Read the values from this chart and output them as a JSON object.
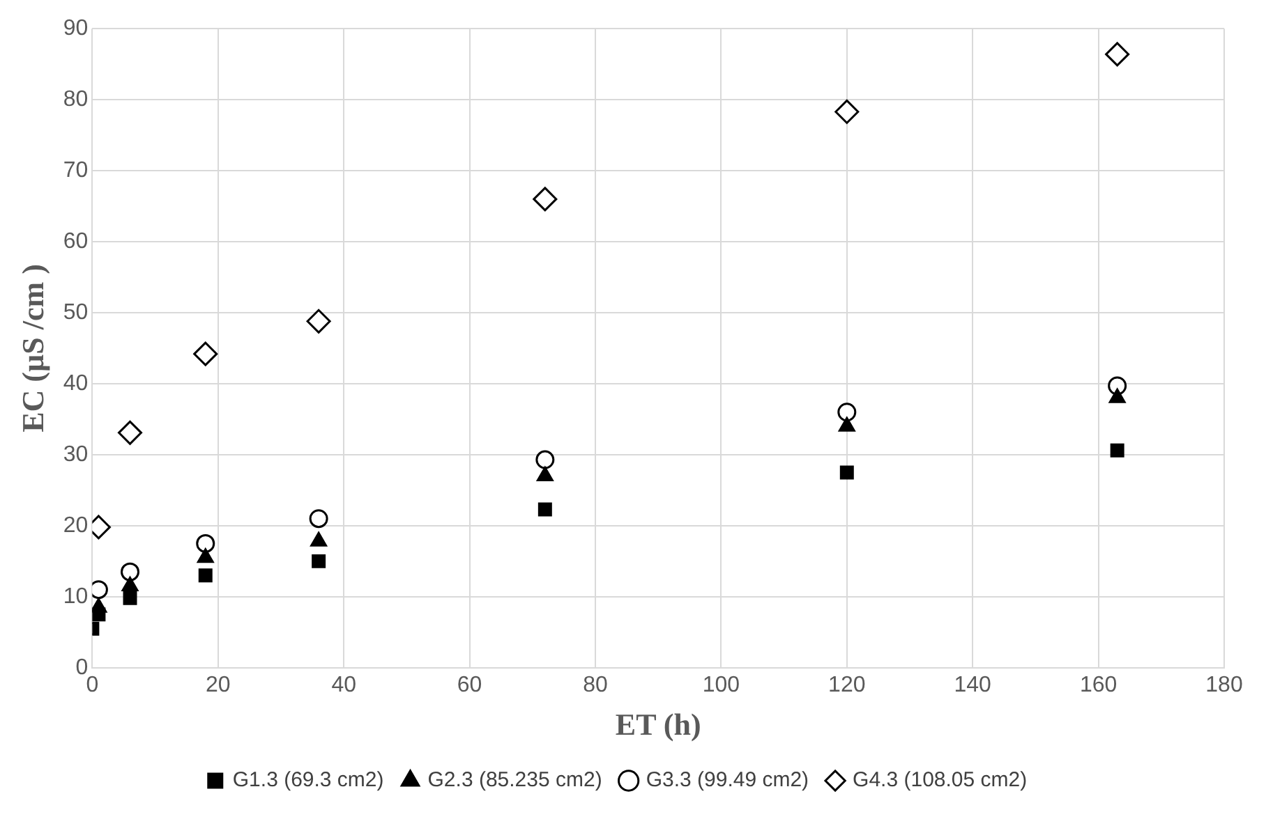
{
  "chart_data": {
    "type": "scatter",
    "xlabel": "ET (h)",
    "ylabel": "EC (µS /cm )",
    "xlim": [
      0,
      180
    ],
    "xticks": [
      0,
      20,
      40,
      60,
      80,
      100,
      120,
      140,
      160,
      180
    ],
    "ylim": [
      0,
      90
    ],
    "yticks": [
      0,
      10,
      20,
      30,
      40,
      50,
      60,
      70,
      80,
      90
    ],
    "grid": true,
    "legend": "bottom",
    "series": [
      {
        "name": "G1.3 (69.3 cm2)",
        "color": "#000000",
        "marker": "square",
        "x": [
          0,
          1,
          6,
          18,
          36,
          72,
          120,
          163
        ],
        "values": [
          5.5,
          7.5,
          9.8,
          13,
          15,
          22.3,
          27.5,
          30.6
        ]
      },
      {
        "name": "G2.3 (85.235 cm2)",
        "color": "#000000",
        "marker": "triangle",
        "x": [
          1,
          6,
          18,
          36,
          72,
          120,
          163
        ],
        "values": [
          8.5,
          11.5,
          15.5,
          17.8,
          27,
          34,
          38
        ]
      },
      {
        "name": "G3.3 (99.49 cm2)",
        "color": "#000000",
        "marker": "circle",
        "x": [
          1,
          6,
          18,
          36,
          72,
          120,
          163
        ],
        "values": [
          11,
          13.5,
          17.5,
          21,
          29.3,
          36,
          39.7
        ]
      },
      {
        "name": "G4.3 (108.05 cm2)",
        "color": "#000000",
        "marker": "diamond",
        "x": [
          1,
          6,
          18,
          36,
          72,
          120,
          163
        ],
        "values": [
          19.8,
          33.1,
          44.2,
          48.8,
          66,
          78.3,
          86.4
        ]
      }
    ]
  }
}
